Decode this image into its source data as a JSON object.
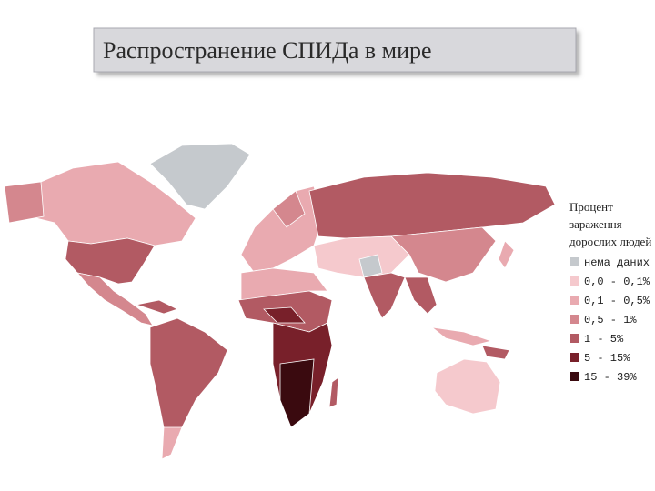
{
  "header": {
    "title": "Распространение СПИДа в мире"
  },
  "legend": {
    "title": [
      "Процент",
      "зараження",
      "дорослих людей"
    ],
    "items": [
      {
        "label": "нема даних",
        "color": "#c5c9cd"
      },
      {
        "label": "0,0 - 0,1%",
        "color": "#f5c9cd"
      },
      {
        "label": "0,1 - 0,5%",
        "color": "#e9aab0"
      },
      {
        "label": "0,5 - 1%",
        "color": "#d4878e"
      },
      {
        "label": "1 - 5%",
        "color": "#b25a63"
      },
      {
        "label": "5 - 15%",
        "color": "#78202a"
      },
      {
        "label": "15 - 39%",
        "color": "#3a0a0f"
      }
    ]
  }
}
